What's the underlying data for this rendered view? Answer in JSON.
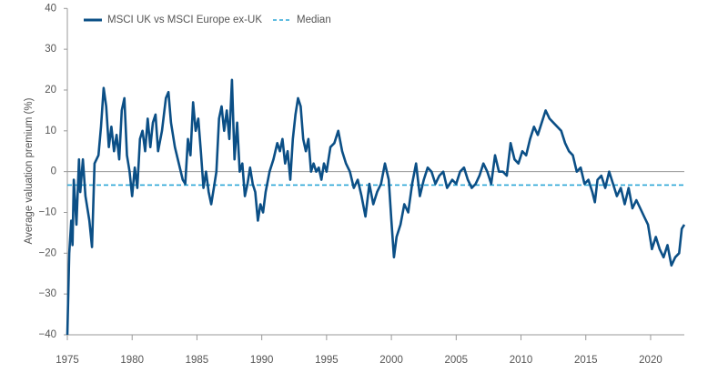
{
  "chart_data": {
    "type": "line",
    "y_label": "Average valuation premium (%)",
    "xlim": [
      1975,
      2022.6
    ],
    "xticks": [
      1975,
      1980,
      1985,
      1990,
      1995,
      2000,
      2005,
      2010,
      2015,
      2020
    ],
    "ylim": [
      -40,
      40
    ],
    "yticks": [
      {
        "value": -40,
        "label": "−40"
      },
      {
        "value": -30,
        "label": "−30"
      },
      {
        "value": -20,
        "label": "−20"
      },
      {
        "value": -10,
        "label": "−10"
      },
      0,
      10,
      20,
      30,
      40
    ],
    "zero_line": true,
    "median": {
      "name": "Median",
      "value": -3.3,
      "color": "#2aa6d6"
    },
    "series": [
      {
        "name": "MSCI UK vs MSCI Europe ex-UK",
        "color": "#0b4f86",
        "x": [
          1975.0,
          1975.15,
          1975.3,
          1975.4,
          1975.5,
          1975.7,
          1975.9,
          1976.0,
          1976.2,
          1976.4,
          1976.7,
          1976.9,
          1977.1,
          1977.4,
          1977.6,
          1977.8,
          1978.0,
          1978.2,
          1978.4,
          1978.6,
          1978.8,
          1979.0,
          1979.2,
          1979.4,
          1979.6,
          1979.8,
          1980.0,
          1980.2,
          1980.4,
          1980.6,
          1980.8,
          1981.0,
          1981.2,
          1981.4,
          1981.6,
          1981.8,
          1982.0,
          1982.3,
          1982.6,
          1982.8,
          1983.0,
          1983.3,
          1983.6,
          1983.9,
          1984.1,
          1984.3,
          1984.5,
          1984.7,
          1984.9,
          1985.1,
          1985.3,
          1985.5,
          1985.7,
          1985.9,
          1986.1,
          1986.3,
          1986.5,
          1986.7,
          1986.9,
          1987.1,
          1987.3,
          1987.5,
          1987.7,
          1987.9,
          1988.1,
          1988.3,
          1988.5,
          1988.7,
          1988.9,
          1989.1,
          1989.3,
          1989.5,
          1989.7,
          1989.9,
          1990.1,
          1990.3,
          1990.6,
          1990.9,
          1991.2,
          1991.4,
          1991.6,
          1991.8,
          1992.0,
          1992.2,
          1992.4,
          1992.6,
          1992.8,
          1993.0,
          1993.2,
          1993.4,
          1993.6,
          1993.8,
          1994.0,
          1994.2,
          1994.4,
          1994.6,
          1994.8,
          1995.0,
          1995.3,
          1995.6,
          1995.9,
          1996.2,
          1996.5,
          1996.8,
          1997.1,
          1997.4,
          1997.7,
          1998.0,
          1998.3,
          1998.6,
          1998.9,
          1999.2,
          1999.5,
          1999.8,
          2000.0,
          2000.2,
          2000.4,
          2000.7,
          2001.0,
          2001.3,
          2001.6,
          2001.9,
          2002.2,
          2002.5,
          2002.8,
          2003.1,
          2003.4,
          2003.7,
          2004.0,
          2004.3,
          2004.7,
          2005.0,
          2005.3,
          2005.6,
          2005.9,
          2006.2,
          2006.5,
          2006.8,
          2007.1,
          2007.4,
          2007.7,
          2008.0,
          2008.3,
          2008.6,
          2008.9,
          2009.2,
          2009.5,
          2009.8,
          2010.1,
          2010.4,
          2010.7,
          2011.0,
          2011.3,
          2011.6,
          2011.9,
          2012.2,
          2012.5,
          2012.8,
          2013.1,
          2013.4,
          2013.7,
          2014.0,
          2014.3,
          2014.6,
          2014.9,
          2015.2,
          2015.5,
          2015.7,
          2015.9,
          2016.2,
          2016.5,
          2016.8,
          2017.1,
          2017.4,
          2017.7,
          2018.0,
          2018.3,
          2018.6,
          2018.9,
          2019.2,
          2019.5,
          2019.8,
          2020.1,
          2020.4,
          2020.7,
          2021.0,
          2021.3,
          2021.6,
          2021.9,
          2022.2,
          2022.4,
          2022.6
        ],
        "values": [
          -40,
          -20,
          -12,
          -18,
          -2,
          -13,
          3,
          -5,
          3,
          -6,
          -12,
          -18.5,
          2,
          4,
          11,
          20.5,
          16,
          6,
          11,
          5,
          9,
          3,
          15,
          18,
          4,
          0,
          -6,
          1,
          -4,
          8,
          10,
          5,
          13,
          6,
          12,
          14,
          5,
          10,
          18,
          19.5,
          12,
          6,
          2,
          -2,
          -3,
          8,
          4,
          17,
          10,
          13,
          5,
          -4,
          0,
          -5,
          -8,
          -4,
          0,
          13,
          16,
          10,
          15,
          8,
          22.5,
          3,
          12,
          0,
          2,
          -6,
          -3,
          1,
          -3,
          -5,
          -12,
          -8,
          -10,
          -5,
          0,
          3,
          7,
          5,
          8,
          2,
          5,
          -2,
          8,
          14,
          18,
          16,
          8,
          5,
          8,
          0,
          2,
          0,
          1,
          -2,
          2,
          0,
          6,
          7,
          10,
          5,
          2,
          0,
          -4,
          -2,
          -6,
          -11,
          -3,
          -8,
          -5,
          -3,
          2,
          -2,
          -12,
          -21,
          -16,
          -13,
          -8,
          -10,
          -3,
          2,
          -6,
          -2,
          1,
          0,
          -3,
          -1,
          0,
          -4,
          -2,
          -3,
          0,
          1,
          -2,
          -4,
          -3,
          -1,
          2,
          0,
          -3,
          4,
          0,
          0,
          -1,
          7,
          3,
          2,
          5,
          4,
          8,
          11,
          9,
          12,
          15,
          13,
          12,
          11,
          10,
          7,
          5,
          4,
          0,
          1,
          -3,
          -2,
          -5,
          -7.5,
          -2,
          -1,
          -4,
          0,
          -3,
          -6,
          -4,
          -8,
          -4,
          -9,
          -7,
          -9,
          -11,
          -13,
          -19,
          -16,
          -19,
          -21,
          -18,
          -23,
          -21,
          -20,
          -14,
          -13
        ]
      }
    ]
  }
}
